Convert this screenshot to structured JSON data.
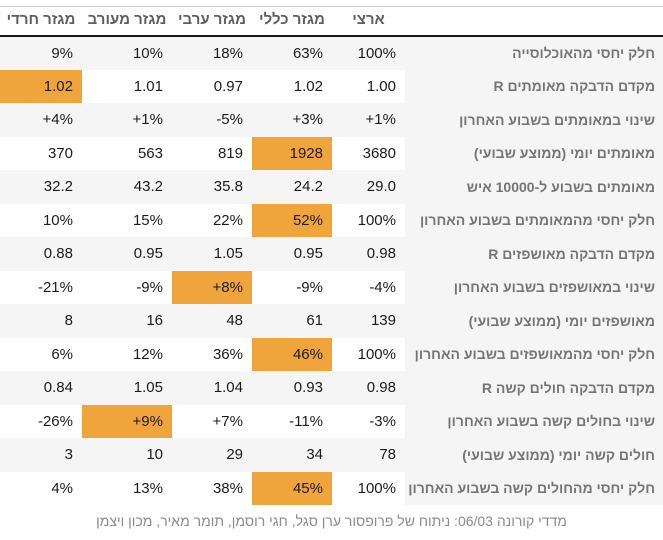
{
  "colors": {
    "highlight_orange": "#f0a43c",
    "negative_red": "#f13a2b",
    "positive_green": "#2f941f",
    "stripe_gray": "#f5f5f6",
    "label_gray": "#757575",
    "header_gray": "#5e5e5e",
    "value_black": "#1b1b1b"
  },
  "chart_data": {
    "type": "table",
    "direction": "rtl",
    "legend_note": "orange cell background = highlighted sector value; red = worsening, green = improving",
    "columns": [
      {
        "key": "labels",
        "label": ""
      },
      {
        "key": "national",
        "label": "ארצי"
      },
      {
        "key": "general",
        "label": "מגזר כללי"
      },
      {
        "key": "arab",
        "label": "מגזר ערבי"
      },
      {
        "key": "mixed",
        "label": "מגזר מעורב"
      },
      {
        "key": "haredi",
        "label": "מגזר חרדי"
      }
    ],
    "rows": [
      {
        "label": "חלק יחסי מהאוכלוסייה",
        "cells": [
          {
            "v": "100%",
            "c": "black",
            "hl": false
          },
          {
            "v": "63%",
            "c": "black",
            "hl": false
          },
          {
            "v": "18%",
            "c": "black",
            "hl": false
          },
          {
            "v": "10%",
            "c": "black",
            "hl": false
          },
          {
            "v": "9%",
            "c": "black",
            "hl": false
          }
        ]
      },
      {
        "label": "מקדם הדבקה מאומתים R",
        "cells": [
          {
            "v": "1.00",
            "c": "red",
            "hl": false
          },
          {
            "v": "1.02",
            "c": "red",
            "hl": false
          },
          {
            "v": "0.97",
            "c": "green",
            "hl": false
          },
          {
            "v": "1.01",
            "c": "red",
            "hl": false
          },
          {
            "v": "1.02",
            "c": "red",
            "hl": true
          }
        ]
      },
      {
        "label": "שינוי במאומתים בשבוע האחרון",
        "cells": [
          {
            "v": "+1%",
            "c": "red",
            "hl": false
          },
          {
            "v": "+3%",
            "c": "red",
            "hl": false
          },
          {
            "v": "-5%",
            "c": "green",
            "hl": false
          },
          {
            "v": "+1%",
            "c": "red",
            "hl": false
          },
          {
            "v": "+4%",
            "c": "red",
            "hl": true
          }
        ]
      },
      {
        "label": "מאומתים יומי (ממוצע שבועי)",
        "cells": [
          {
            "v": "3680",
            "c": "black",
            "hl": false
          },
          {
            "v": "1928",
            "c": "black",
            "hl": true
          },
          {
            "v": "819",
            "c": "black",
            "hl": false
          },
          {
            "v": "563",
            "c": "black",
            "hl": false
          },
          {
            "v": "370",
            "c": "black",
            "hl": false
          }
        ]
      },
      {
        "label": "מאומתים בשבוע ל-10000 איש",
        "cells": [
          {
            "v": "29.0",
            "c": "red",
            "hl": false
          },
          {
            "v": "24.2",
            "c": "red",
            "hl": false
          },
          {
            "v": "35.8",
            "c": "red",
            "hl": false
          },
          {
            "v": "43.2",
            "c": "red",
            "hl": true
          },
          {
            "v": "32.2",
            "c": "red",
            "hl": false
          }
        ]
      },
      {
        "label": "חלק יחסי מהמאומתים בשבוע האחרון",
        "cells": [
          {
            "v": "100%",
            "c": "black",
            "hl": false
          },
          {
            "v": "52%",
            "c": "black",
            "hl": true
          },
          {
            "v": "22%",
            "c": "black",
            "hl": false
          },
          {
            "v": "15%",
            "c": "black",
            "hl": false
          },
          {
            "v": "10%",
            "c": "black",
            "hl": false
          }
        ]
      },
      {
        "label": "מקדם הדבקה מאושפזים R",
        "cells": [
          {
            "v": "0.98",
            "c": "green",
            "hl": false
          },
          {
            "v": "0.95",
            "c": "green",
            "hl": false
          },
          {
            "v": "1.05",
            "c": "red",
            "hl": true
          },
          {
            "v": "0.95",
            "c": "green",
            "hl": false
          },
          {
            "v": "0.88",
            "c": "green",
            "hl": false
          }
        ]
      },
      {
        "label": "שינוי במאושפזים בשבוע האחרון",
        "cells": [
          {
            "v": "-4%",
            "c": "green",
            "hl": false
          },
          {
            "v": "-9%",
            "c": "green",
            "hl": false
          },
          {
            "v": "+8%",
            "c": "red",
            "hl": true
          },
          {
            "v": "-9%",
            "c": "green",
            "hl": false
          },
          {
            "v": "-21%",
            "c": "green",
            "hl": false
          }
        ]
      },
      {
        "label": "מאושפזים יומי (ממוצע שבועי)",
        "cells": [
          {
            "v": "139",
            "c": "black",
            "hl": false
          },
          {
            "v": "61",
            "c": "black",
            "hl": true
          },
          {
            "v": "48",
            "c": "black",
            "hl": false
          },
          {
            "v": "16",
            "c": "black",
            "hl": false
          },
          {
            "v": "8",
            "c": "black",
            "hl": false
          }
        ]
      },
      {
        "label": "חלק יחסי מהמאושפזים בשבוע האחרון",
        "cells": [
          {
            "v": "100%",
            "c": "black",
            "hl": false
          },
          {
            "v": "46%",
            "c": "black",
            "hl": true
          },
          {
            "v": "36%",
            "c": "black",
            "hl": false
          },
          {
            "v": "12%",
            "c": "black",
            "hl": false
          },
          {
            "v": "6%",
            "c": "black",
            "hl": false
          }
        ]
      },
      {
        "label": "מקדם הדבקה חולים קשה R",
        "cells": [
          {
            "v": "0.98",
            "c": "green",
            "hl": false
          },
          {
            "v": "0.93",
            "c": "green",
            "hl": false
          },
          {
            "v": "1.04",
            "c": "red",
            "hl": false
          },
          {
            "v": "1.05",
            "c": "red",
            "hl": true
          },
          {
            "v": "0.84",
            "c": "green",
            "hl": false
          }
        ]
      },
      {
        "label": "שינוי בחולים קשה בשבוע האחרון",
        "cells": [
          {
            "v": "-3%",
            "c": "green",
            "hl": false
          },
          {
            "v": "-11%",
            "c": "green",
            "hl": false
          },
          {
            "v": "+7%",
            "c": "red",
            "hl": false
          },
          {
            "v": "+9%",
            "c": "red",
            "hl": true
          },
          {
            "v": "-26%",
            "c": "green",
            "hl": false
          }
        ]
      },
      {
        "label": "חולים קשה יומי (ממוצע שבועי)",
        "cells": [
          {
            "v": "78",
            "c": "black",
            "hl": false
          },
          {
            "v": "34",
            "c": "black",
            "hl": true
          },
          {
            "v": "29",
            "c": "black",
            "hl": false
          },
          {
            "v": "10",
            "c": "black",
            "hl": false
          },
          {
            "v": "3",
            "c": "black",
            "hl": false
          }
        ]
      },
      {
        "label": "חלק יחסי מהחולים קשה בשבוע האחרון",
        "cells": [
          {
            "v": "100%",
            "c": "black",
            "hl": false
          },
          {
            "v": "45%",
            "c": "black",
            "hl": true
          },
          {
            "v": "38%",
            "c": "black",
            "hl": false
          },
          {
            "v": "13%",
            "c": "black",
            "hl": false
          },
          {
            "v": "4%",
            "c": "black",
            "hl": false
          }
        ]
      }
    ]
  },
  "footer": {
    "text": "מדדי קורונה 06/03: ניתוח של פרופסור ערן סגל, חגי רוסמן, תומר מאיר, מכון ויצמן"
  }
}
